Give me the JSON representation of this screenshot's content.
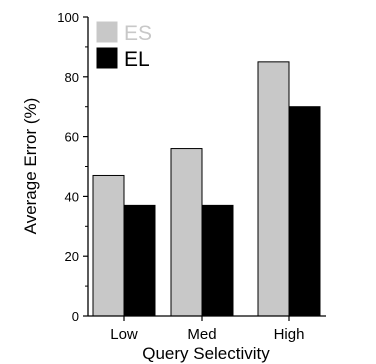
{
  "chart_data": {
    "type": "bar",
    "categories": [
      "Low",
      "Med",
      "High"
    ],
    "series": [
      {
        "name": "ES",
        "values": [
          47,
          56,
          85
        ],
        "color": "#c8c8c8"
      },
      {
        "name": "EL",
        "values": [
          37,
          37,
          70
        ],
        "color": "#000000"
      }
    ],
    "xlabel": "Query Selectivity",
    "ylabel": "Average Error (%)",
    "ylim": [
      0,
      100
    ],
    "yticks": [
      0,
      20,
      40,
      60,
      80,
      100
    ],
    "grid": false,
    "legend_position": "top-left"
  }
}
